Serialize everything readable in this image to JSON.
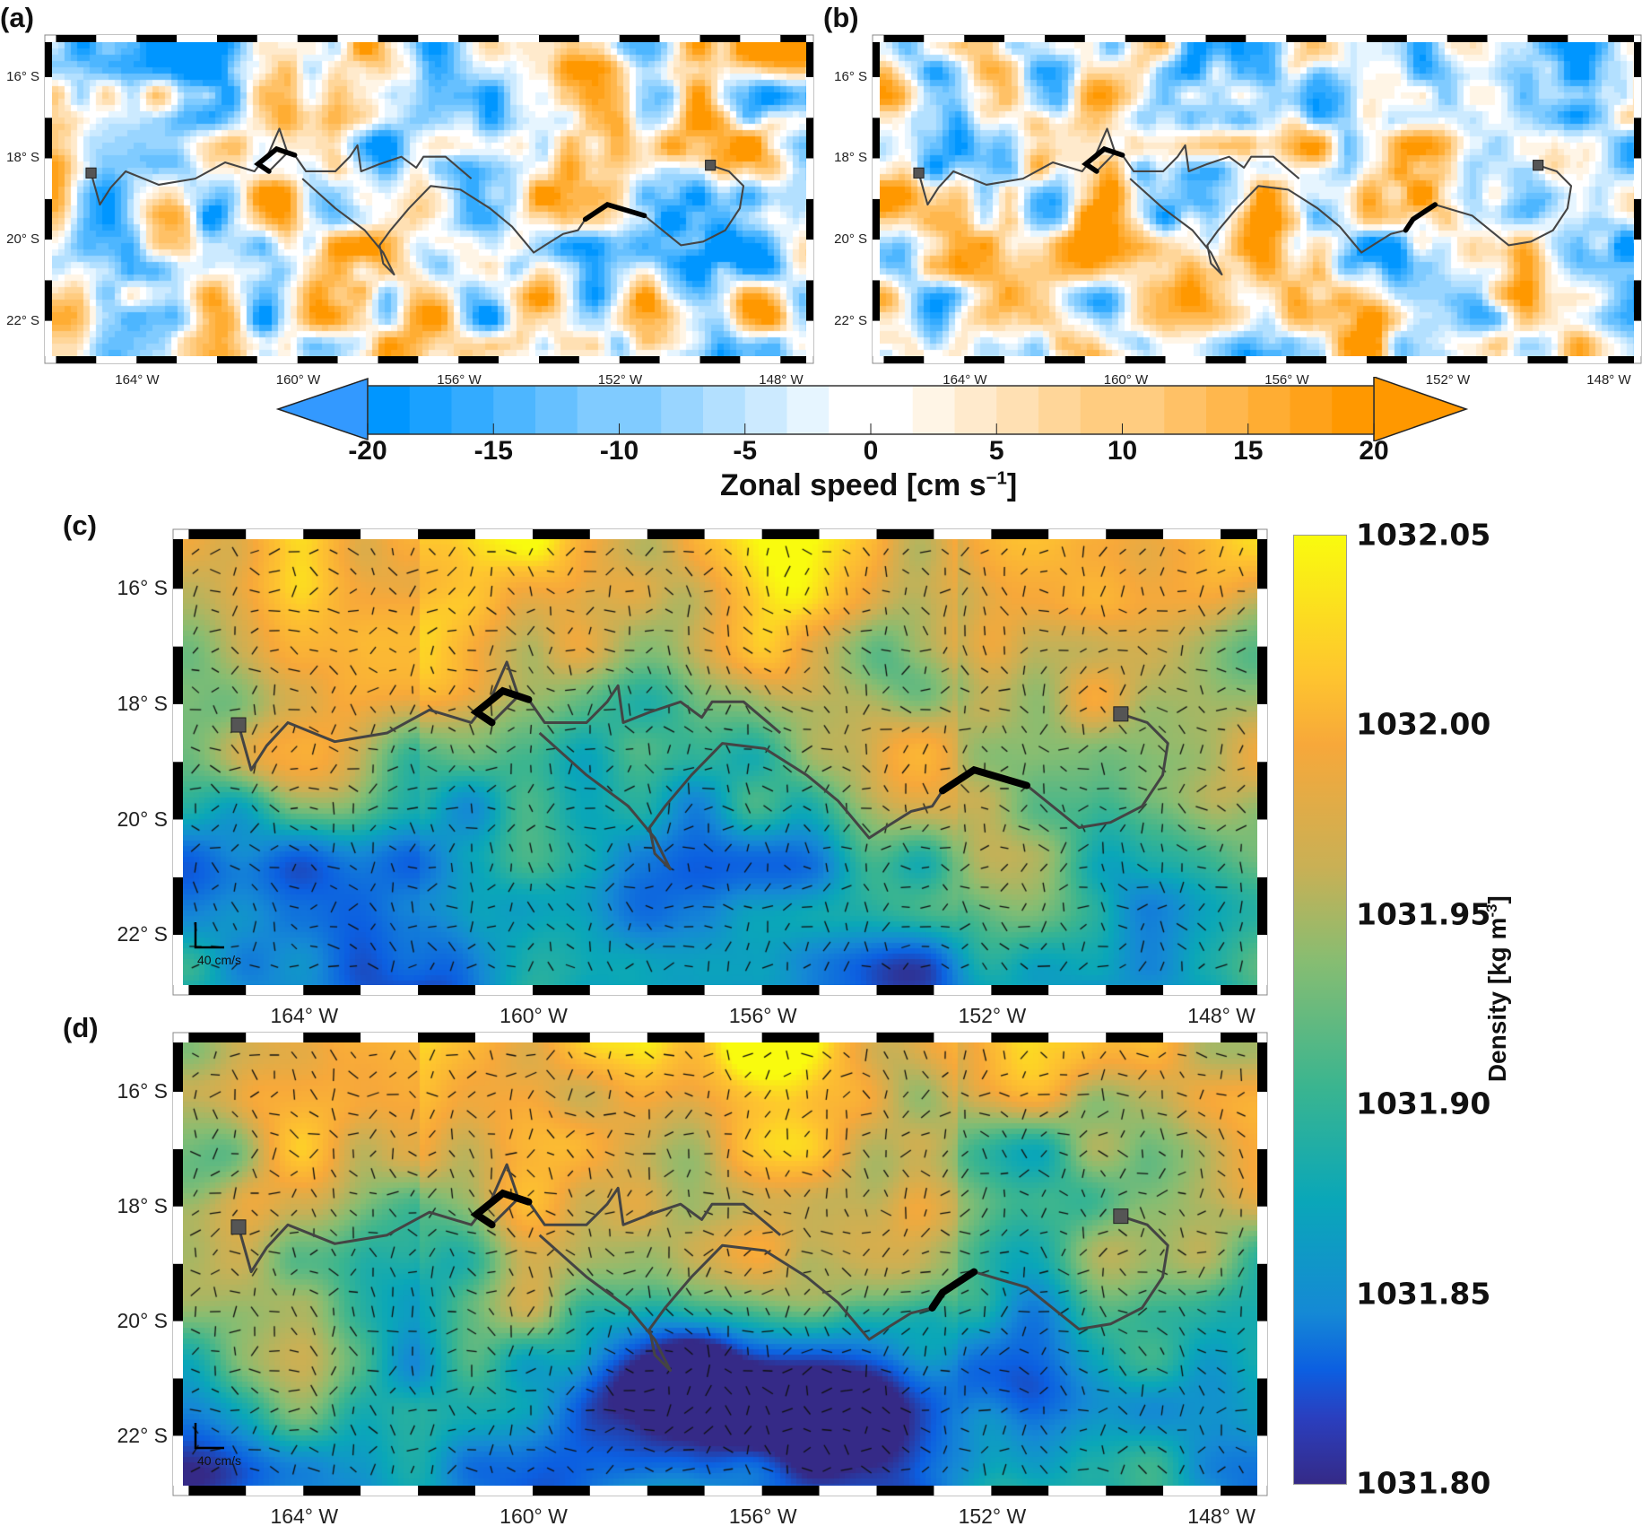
{
  "panels": [
    {
      "label": "(a)",
      "field": "zonal"
    },
    {
      "label": "(b)",
      "field": "zonal"
    },
    {
      "label": "(c)",
      "field": "density"
    },
    {
      "label": "(d)",
      "field": "density"
    }
  ],
  "lat_labels": [
    "16° S",
    "18° S",
    "20° S",
    "22° S"
  ],
  "lon_labels": [
    "164° W",
    "160° W",
    "156° W",
    "152° W",
    "148° W"
  ],
  "quiver_scale_label": "40 cm/s",
  "zonal_colorbar": {
    "ticks": [
      "-20",
      "-15",
      "-10",
      "-5",
      "0",
      "5",
      "10",
      "15",
      "20"
    ],
    "title": "Zonal speed [cm s",
    "title_sup": "−1",
    "title_end": "]",
    "range": [
      -20,
      20
    ],
    "neg_color": "#0096ff",
    "pos_color": "#ff9800"
  },
  "density_colorbar": {
    "ticks": [
      "1032.05",
      "1032.00",
      "1031.95",
      "1031.90",
      "1031.85",
      "1031.80"
    ],
    "title": "Density [kg m",
    "title_sup": "-3",
    "title_end": "]",
    "range": [
      1031.8,
      1032.05
    ]
  },
  "chart_data": {
    "type": "map",
    "extent": {
      "lon": [
        -166.1,
        -147.36
      ],
      "lat": [
        -22.87,
        -15.14
      ]
    },
    "track_north": [
      [
        -165.13,
        -18.36
      ],
      [
        -164.91,
        -19.14
      ],
      [
        -164.64,
        -18.72
      ],
      [
        -164.27,
        -18.32
      ],
      [
        -163.45,
        -18.65
      ],
      [
        -162.54,
        -18.5
      ],
      [
        -161.8,
        -18.1
      ],
      [
        -161.07,
        -18.32
      ],
      [
        -160.71,
        -17.86
      ],
      [
        -160.45,
        -17.27
      ],
      [
        -160.25,
        -17.86
      ],
      [
        -160.71,
        -18.32
      ],
      [
        -160.98,
        -18.14
      ],
      [
        -160.52,
        -17.77
      ],
      [
        -160.07,
        -17.92
      ],
      [
        -159.79,
        -18.32
      ],
      [
        -159.06,
        -18.32
      ],
      [
        -158.7,
        -17.96
      ],
      [
        -158.51,
        -17.68
      ],
      [
        -158.42,
        -18.32
      ],
      [
        -157.96,
        -18.14
      ],
      [
        -157.42,
        -17.96
      ],
      [
        -157.05,
        -18.23
      ],
      [
        -156.87,
        -17.96
      ],
      [
        -156.32,
        -17.96
      ],
      [
        -155.68,
        -18.5
      ]
    ],
    "track_south": [
      [
        -159.88,
        -18.5
      ],
      [
        -159.06,
        -19.23
      ],
      [
        -158.33,
        -19.77
      ],
      [
        -157.87,
        -20.32
      ],
      [
        -157.6,
        -20.86
      ],
      [
        -157.87,
        -20.59
      ],
      [
        -157.96,
        -20.14
      ],
      [
        -157.69,
        -19.77
      ],
      [
        -157.23,
        -19.23
      ],
      [
        -156.69,
        -18.68
      ],
      [
        -155.95,
        -18.77
      ],
      [
        -155.22,
        -19.23
      ],
      [
        -154.67,
        -19.68
      ],
      [
        -154.13,
        -20.32
      ],
      [
        -153.85,
        -20.14
      ],
      [
        -153.4,
        -19.86
      ],
      [
        -153.03,
        -19.77
      ],
      [
        -152.85,
        -19.5
      ],
      [
        -152.3,
        -19.14
      ],
      [
        -151.38,
        -19.41
      ],
      [
        -150.47,
        -20.14
      ],
      [
        -149.92,
        -20.05
      ],
      [
        -149.37,
        -19.77
      ],
      [
        -149.01,
        -19.23
      ],
      [
        -148.92,
        -18.68
      ],
      [
        -149.28,
        -18.32
      ],
      [
        -149.74,
        -18.17
      ]
    ],
    "start_markers": [
      [
        -165.13,
        -18.36
      ],
      [
        -149.74,
        -18.17
      ]
    ]
  }
}
